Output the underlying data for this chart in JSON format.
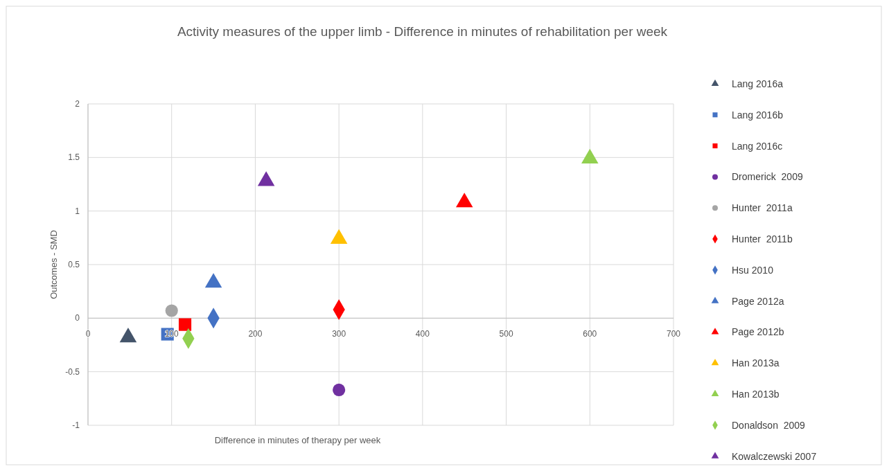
{
  "chart_data": {
    "type": "scatter",
    "title": "Activity measures of the upper limb - Difference in minutes of rehabilitation per week",
    "xlabel": "Difference  in minutes of therapy per week",
    "ylabel": "Outcomes - SMD",
    "xlim": [
      0,
      700
    ],
    "xticks": [
      0,
      100,
      200,
      300,
      400,
      500,
      600,
      700
    ],
    "ylim": [
      -1,
      2
    ],
    "yticks": [
      -1,
      -0.5,
      0,
      0.5,
      1,
      1.5,
      2
    ],
    "grid": true,
    "legend": "right",
    "series": [
      {
        "name": "Lang 2016a",
        "color": "#44546a",
        "marker": "triangle",
        "x": [
          48
        ],
        "values": [
          -0.18
        ]
      },
      {
        "name": "Lang 2016b",
        "color": "#4472c4",
        "marker": "square",
        "x": [
          95
        ],
        "values": [
          -0.15
        ]
      },
      {
        "name": "Lang 2016c",
        "color": "#ff0000",
        "marker": "square",
        "x": [
          116
        ],
        "values": [
          -0.06
        ]
      },
      {
        "name": "Dromerick  2009",
        "color": "#7030a0",
        "marker": "circle",
        "x": [
          300
        ],
        "values": [
          -0.67
        ]
      },
      {
        "name": "Hunter  2011a",
        "color": "#a5a5a5",
        "marker": "circle",
        "x": [
          100
        ],
        "values": [
          0.07
        ]
      },
      {
        "name": "Hunter  2011b",
        "color": "#ff0000",
        "marker": "diamond",
        "x": [
          300
        ],
        "values": [
          0.08
        ]
      },
      {
        "name": "Hsu 2010",
        "color": "#4472c4",
        "marker": "diamond",
        "x": [
          150
        ],
        "values": [
          0
        ]
      },
      {
        "name": "Page 2012a",
        "color": "#4472c4",
        "marker": "triangle",
        "x": [
          150
        ],
        "values": [
          0.33
        ]
      },
      {
        "name": "Page 2012b",
        "color": "#ff0000",
        "marker": "triangle",
        "x": [
          450
        ],
        "values": [
          1.08
        ]
      },
      {
        "name": "Han 2013a",
        "color": "#ffc000",
        "marker": "triangle",
        "x": [
          300
        ],
        "values": [
          0.74
        ]
      },
      {
        "name": "Han 2013b",
        "color": "#92d050",
        "marker": "triangle",
        "x": [
          600
        ],
        "values": [
          1.49
        ]
      },
      {
        "name": "Donaldson  2009",
        "color": "#92d050",
        "marker": "diamond",
        "x": [
          120
        ],
        "values": [
          -0.19
        ]
      },
      {
        "name": "Kowalczewski 2007",
        "color": "#7030a0",
        "marker": "triangle",
        "x": [
          213
        ],
        "values": [
          1.28
        ]
      }
    ]
  }
}
